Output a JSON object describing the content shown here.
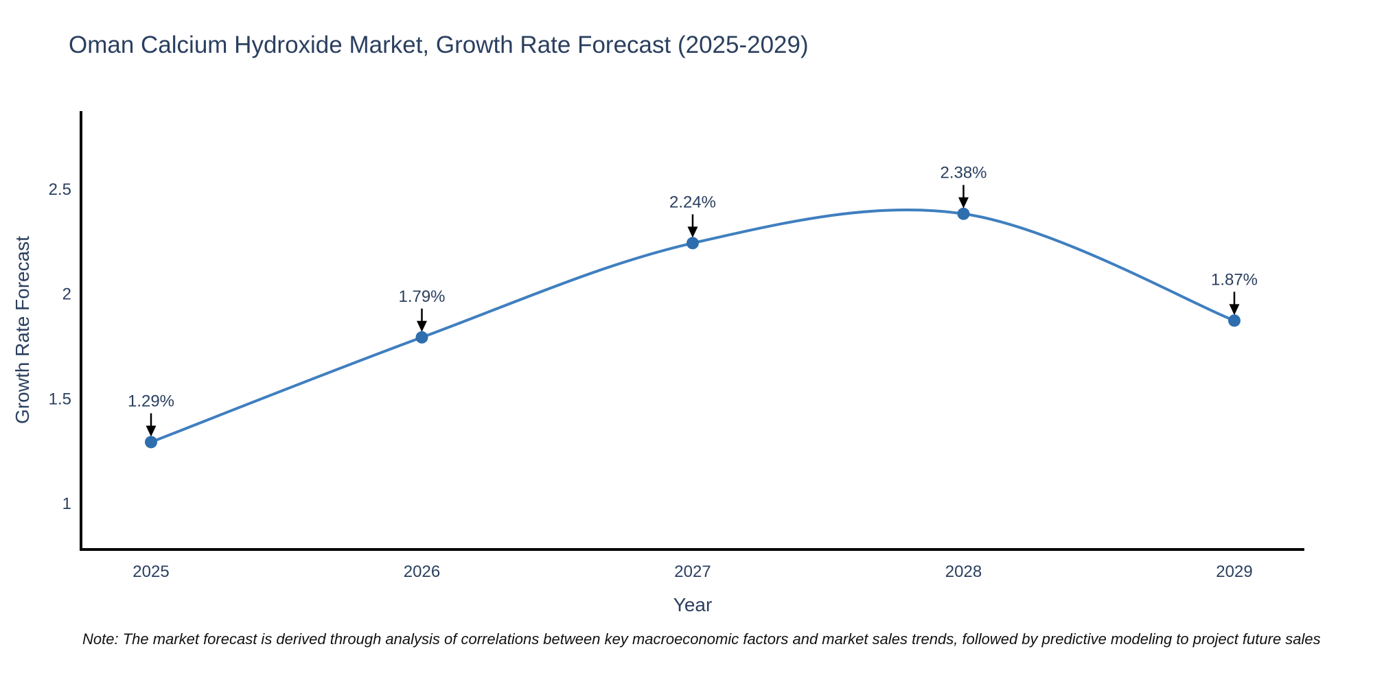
{
  "chart_data": {
    "type": "line",
    "title": "Oman Calcium Hydroxide Market, Growth Rate Forecast (2025-2029)",
    "xlabel": "Year",
    "ylabel": "Growth Rate Forecast",
    "categories": [
      "2025",
      "2026",
      "2027",
      "2028",
      "2029"
    ],
    "series": [
      {
        "name": "Growth Rate Forecast",
        "values": [
          1.29,
          1.79,
          2.24,
          2.38,
          1.87
        ],
        "point_labels": [
          "1.29%",
          "1.79%",
          "2.24%",
          "2.38%",
          "1.87%"
        ]
      }
    ],
    "yticks": [
      1,
      1.5,
      2,
      2.5
    ],
    "ylim": [
      0.78,
      2.9
    ],
    "line_shape": "spline",
    "grid": false,
    "legend_visible": false,
    "annotations_style": "value label above point with black down arrow",
    "colors": {
      "line": "#3f7fbf",
      "marker": "#2e6eae",
      "axis": "#000000",
      "tick_text": "#2a3f5f",
      "title_text": "#2a3f5f",
      "note_text": "#111111",
      "arrow": "#000000",
      "background": "#ffffff"
    },
    "note": "Note: The market forecast is derived through analysis of correlations between key macroeconomic factors and market sales trends, followed by predictive modeling to project future sales"
  }
}
